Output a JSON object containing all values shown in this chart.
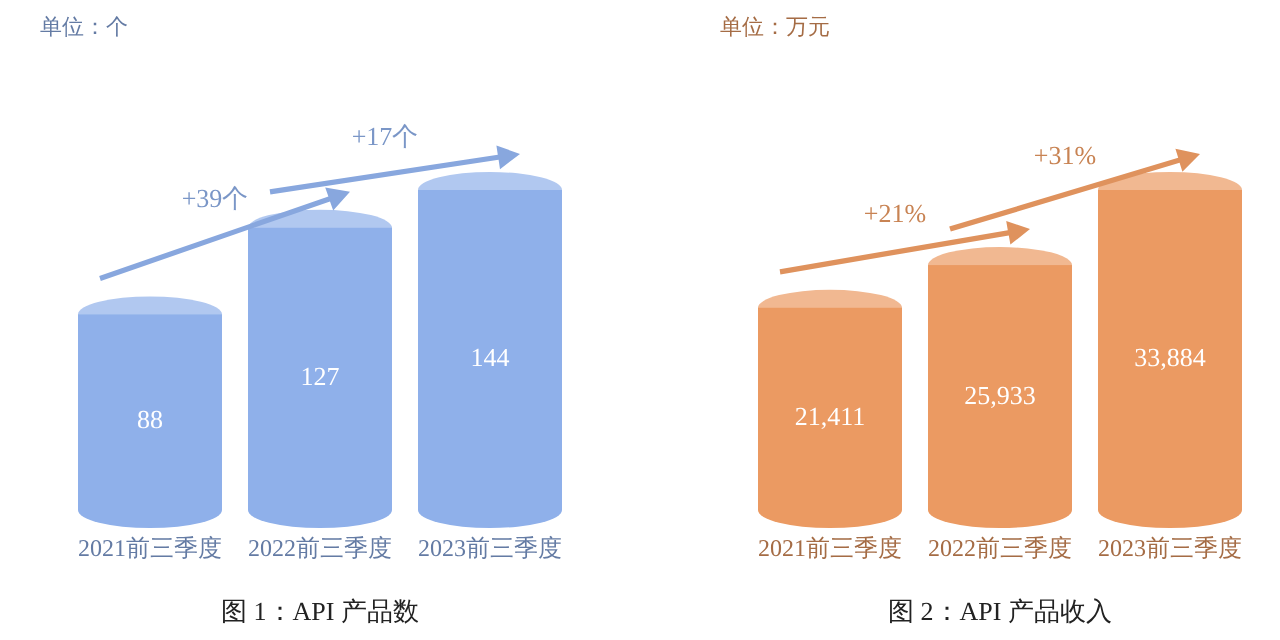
{
  "chart_data": [
    {
      "type": "bar",
      "title": "图 1：API 产品数",
      "categories": [
        "2021前三季度",
        "2022前三季度",
        "2023前三季度"
      ],
      "values": [
        88,
        127,
        144
      ],
      "color": "#8fb0ea",
      "data_labels": true,
      "annotations": [
        "单位：个",
        "+39个",
        "+17个"
      ]
    },
    {
      "type": "bar",
      "title": "图 2：API 产品收入",
      "categories": [
        "2021前三季度",
        "2022前三季度",
        "2023前三季度"
      ],
      "values": [
        21411,
        25933,
        33884
      ],
      "color": "#eb9a62",
      "value_labels": [
        "21,411",
        "25,933",
        "33,884"
      ],
      "annotations": [
        "单位：万元",
        "+21%",
        "+31%"
      ]
    }
  ]
}
